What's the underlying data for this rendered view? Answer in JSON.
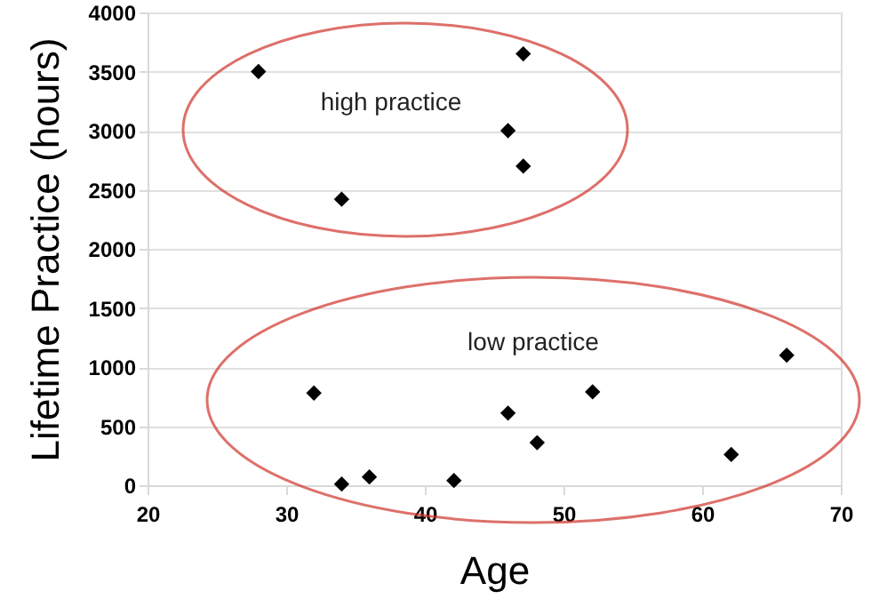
{
  "chart_data": {
    "type": "scatter",
    "xlabel": "Age",
    "ylabel": "Lifetime Practice (hours)",
    "x": [
      28,
      47.1,
      46,
      47.1,
      34,
      32,
      34,
      36,
      42.1,
      46,
      48.1,
      52.1,
      62.1,
      66.1
    ],
    "values": [
      3500,
      3650,
      3000,
      2700,
      2420,
      780,
      10,
      70,
      40,
      610,
      360,
      790,
      260,
      1100
    ],
    "color": "#000000",
    "marker": "diamond",
    "xlim": [
      20,
      70
    ],
    "xticks": [
      20,
      30,
      40,
      50,
      60,
      70
    ],
    "ylim": [
      0,
      4000
    ],
    "yticks": [
      0,
      500,
      1000,
      1500,
      2000,
      2500,
      3000,
      3500,
      4000
    ],
    "grid": "y",
    "annotations": [
      "high practice",
      "low practice"
    ]
  }
}
